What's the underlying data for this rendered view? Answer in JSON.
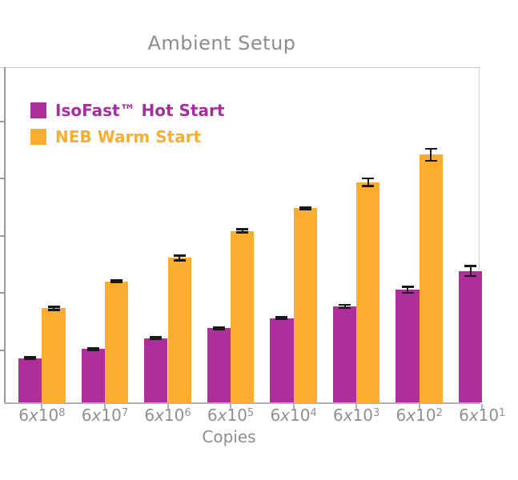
{
  "title": "Ambient Setup",
  "legend": {
    "items": [
      {
        "label": "IsoFast™ Hot Start",
        "swatch_color": "#AE2F9C",
        "text_color": "#A6309B"
      },
      {
        "label": "NEB Warm Start",
        "swatch_color": "#FBAD30",
        "text_color": "#F9AE2E"
      }
    ]
  },
  "chart_data": {
    "type": "bar",
    "title": "Ambient Setup",
    "xlabel": "Copies",
    "ylabel": "",
    "categories": [
      "6x10^8",
      "6x10^7",
      "6x10^6",
      "6x10^5",
      "6x10^4",
      "6x10^3",
      "6x10^2",
      "6x10^1"
    ],
    "categories_display": [
      {
        "coeff": "6",
        "times": "x",
        "base": "10",
        "exp": "8"
      },
      {
        "coeff": "6",
        "times": "x",
        "base": "10",
        "exp": "7"
      },
      {
        "coeff": "6",
        "times": "x",
        "base": "10",
        "exp": "6"
      },
      {
        "coeff": "6",
        "times": "x",
        "base": "10",
        "exp": "5"
      },
      {
        "coeff": "6",
        "times": "x",
        "base": "10",
        "exp": "4"
      },
      {
        "coeff": "6",
        "times": "x",
        "base": "10",
        "exp": "3"
      },
      {
        "coeff": "6",
        "times": "x",
        "base": "10",
        "exp": "2"
      },
      {
        "coeff": "6",
        "times": "x",
        "base": "10",
        "exp": "1"
      }
    ],
    "series": [
      {
        "name": "IsoFast™ Hot Start",
        "color": "#AE2F9C",
        "values": [
          0.78,
          0.94,
          1.13,
          1.3,
          1.48,
          1.68,
          1.97,
          2.3
        ],
        "errors": [
          0.03,
          0.03,
          0.03,
          0.03,
          0.03,
          0.045,
          0.07,
          0.105
        ]
      },
      {
        "name": "NEB Warm Start",
        "color": "#FBAD30",
        "values": [
          1.65,
          2.12,
          2.53,
          3.0,
          3.4,
          3.85,
          4.33,
          null
        ],
        "errors": [
          0.045,
          0.03,
          0.06,
          0.045,
          0.03,
          0.085,
          0.125,
          null
        ]
      }
    ],
    "y_axis": {
      "tick_labels": "not visible (cropped at left edge of screenshot)",
      "n_ticks": 5,
      "units": "axis tick intervals",
      "ylim": [
        0,
        5.85
      ]
    },
    "legend_position": "top-left",
    "grid": false,
    "error_bars": true,
    "last_group_clipped": true
  }
}
